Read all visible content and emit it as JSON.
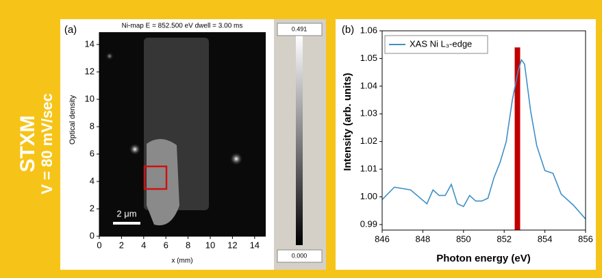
{
  "side_text": [
    "STXM",
    "V = 80 mV/sec"
  ],
  "chart_data": [
    {
      "type": "image",
      "panel": "(a)",
      "title": "Ni-map  E = 852.500 eV dwell = 3.00 ms",
      "xlabel": "x (mm)",
      "ylabel": "Optical density",
      "scale_bar": "2 μm",
      "xlim": [
        0,
        15
      ],
      "ylim": [
        0,
        14.9
      ],
      "xticks": [
        0,
        2,
        4,
        6,
        8,
        10,
        12,
        14
      ],
      "yticks": [
        0,
        2,
        4,
        6,
        8,
        10,
        12,
        14
      ],
      "colorbar": {
        "max": 0.491,
        "min": {
          "value": 0,
          "label": "0.000"
        }
      }
    },
    {
      "type": "line",
      "panel": "(b)",
      "xlabel": "Photon energy (eV)",
      "ylabel": "Intensity (arb. units)",
      "x": [
        846,
        846.6,
        847.4,
        848.2,
        848.5,
        848.8,
        849.1,
        849.4,
        849.7,
        850.0,
        850.3,
        850.6,
        850.9,
        851.2,
        851.5,
        851.8,
        852.1,
        852.4,
        852.7,
        852.85,
        853.0,
        853.3,
        853.6,
        854.0,
        854.4,
        854.8,
        855.4,
        856
      ],
      "series": [
        {
          "name": "XAS Ni L₃-edge",
          "color": "#3d8fc6",
          "values": [
            0.999,
            1.0035,
            1.0025,
            0.9975,
            1.0025,
            1.0005,
            1.0005,
            1.0045,
            0.9975,
            0.9965,
            1.0005,
            0.9985,
            0.9985,
            0.9995,
            1.007,
            1.0125,
            1.02,
            1.035,
            1.046,
            1.0495,
            1.048,
            1.031,
            1.0185,
            1.0095,
            1.0085,
            1.001,
            0.997,
            0.992
          ]
        }
      ],
      "highlight": {
        "x": 852.65,
        "top": 1.054,
        "color": "#c00000"
      },
      "xlim": [
        846,
        856
      ],
      "ylim": [
        0.988,
        1.06
      ],
      "xticks": [
        846,
        848,
        850,
        852,
        854,
        856
      ],
      "yticks": [
        0.99,
        {
          "value": 1,
          "label": "1.00"
        },
        1.01,
        1.02,
        1.03,
        1.04,
        1.05,
        1.06
      ],
      "legend": "upper left"
    }
  ]
}
